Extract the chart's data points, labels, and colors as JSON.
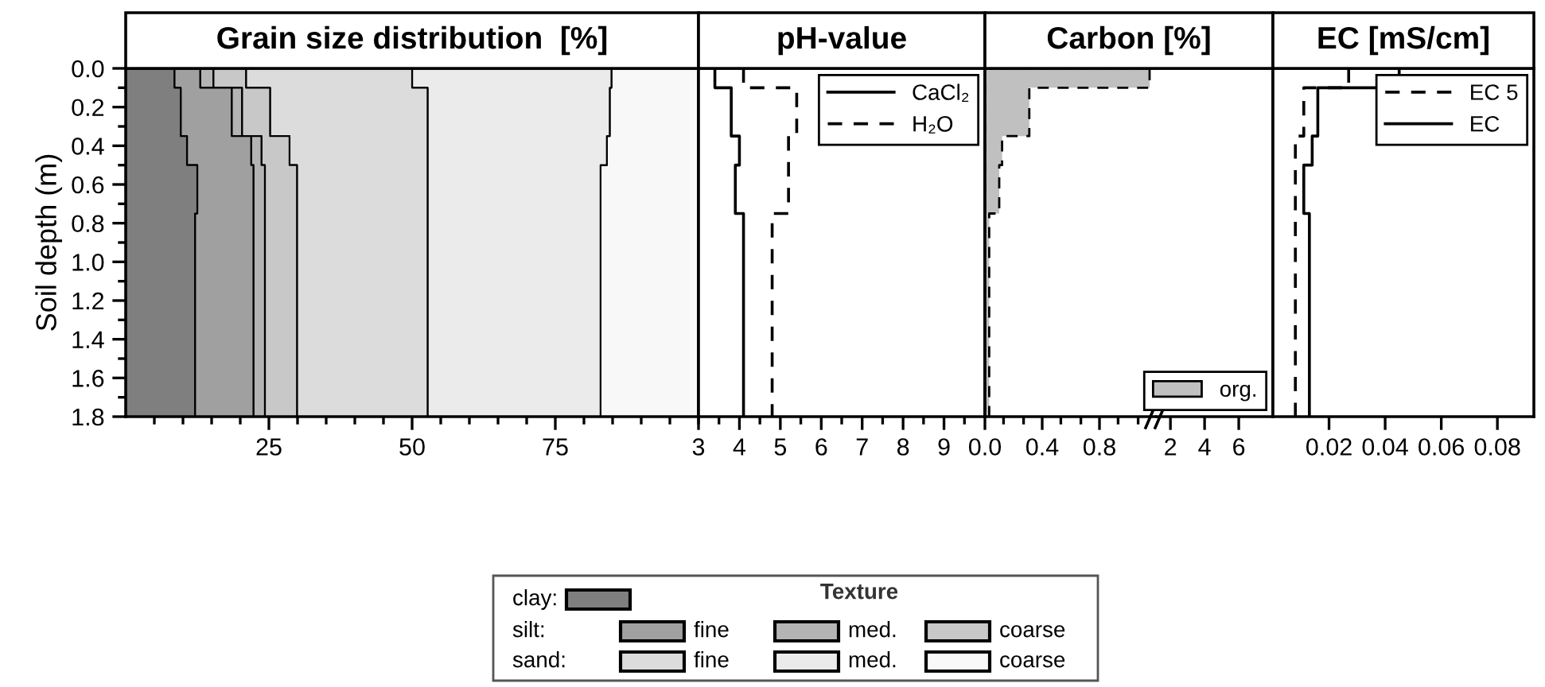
{
  "chart_data": [
    {
      "type": "area",
      "title": "Grain size distribution  [%]",
      "ylabel": "Soil depth (m)",
      "orientation": "horizontal",
      "stacked": true,
      "legend": "bottom",
      "legend_title": "Texture",
      "annotations": [
        "silt:",
        "sand:"
      ],
      "x": [
        0.0,
        0.1,
        0.35,
        0.5,
        0.75,
        1.8
      ],
      "ylim": [
        1.8,
        0.0
      ],
      "yticks": [
        {
          "value": 0,
          "label": "0.0"
        },
        {
          "value": 0.1,
          "label": null
        },
        0.2,
        {
          "value": 0.3,
          "label": null
        },
        0.4,
        {
          "value": 0.5,
          "label": null
        },
        0.6,
        {
          "value": 0.7,
          "label": null
        },
        0.8,
        {
          "value": 0.9,
          "label": null
        },
        {
          "value": 1,
          "label": "1.0"
        },
        {
          "value": 1.1,
          "label": null
        },
        1.2,
        {
          "value": 1.3,
          "label": null
        },
        1.4,
        {
          "value": 1.5,
          "label": null
        },
        1.6,
        {
          "value": 1.7,
          "label": null
        },
        1.8
      ],
      "xlim": [
        0,
        100
      ],
      "xticks": [
        {
          "value": 5,
          "label": null
        },
        {
          "value": 10,
          "label": null
        },
        {
          "value": 15,
          "label": null
        },
        {
          "value": 20,
          "label": null
        },
        25,
        {
          "value": 30,
          "label": null
        },
        {
          "value": 35,
          "label": null
        },
        {
          "value": 40,
          "label": null
        },
        {
          "value": 45,
          "label": null
        },
        50,
        {
          "value": 55,
          "label": null
        },
        {
          "value": 60,
          "label": null
        },
        {
          "value": 65,
          "label": null
        },
        {
          "value": 70,
          "label": null
        },
        75,
        {
          "value": 80,
          "label": null
        },
        {
          "value": 85,
          "label": null
        },
        {
          "value": 90,
          "label": null
        },
        {
          "value": 95,
          "label": null
        },
        {
          "value": 100,
          "label": null
        }
      ],
      "series": [
        {
          "name": "clay:",
          "color": "#7f7f7f",
          "values": [
            8.5,
            9.6,
            10.7,
            12.5,
            12.1,
            12.1
          ]
        },
        {
          "name": "fine",
          "color": "#a0a0a0",
          "values": [
            4.5,
            8.9,
            11.2,
            9.8,
            10.2,
            10.2
          ]
        },
        {
          "name": "med.",
          "color": "#b4b4b4",
          "values": [
            2.3,
            1.8,
            1.8,
            2.0,
            2.0,
            2.0
          ]
        },
        {
          "name": "coarse",
          "color": "#c8c8c8",
          "values": [
            5.7,
            4.9,
            4.9,
            5.6,
            5.6,
            5.6
          ]
        },
        {
          "name": "fine",
          "color": "#dcdcdc",
          "values": [
            29.0,
            27.5,
            24.1,
            22.8,
            22.8,
            22.8
          ]
        },
        {
          "name": "med.",
          "color": "#ebebeb",
          "values": [
            34.8,
            31.8,
            31.3,
            30.2,
            30.2,
            30.2
          ]
        },
        {
          "name": "coarse",
          "color": "#f8f8f8",
          "values": [
            15.2,
            15.5,
            16.0,
            17.1,
            17.1,
            17.1
          ]
        }
      ]
    },
    {
      "type": "step",
      "title": "pH-value",
      "orientation": "horizontal",
      "legend": "top right",
      "tick_labels": "x",
      "x": [
        0.0,
        0.1,
        0.35,
        0.5,
        0.75,
        1.8
      ],
      "ylim": [
        1.8,
        0.0
      ],
      "xlim": [
        3,
        10
      ],
      "xticks": [
        3,
        {
          "value": 3.5,
          "label": null
        },
        4,
        {
          "value": 4.5,
          "label": null
        },
        5,
        {
          "value": 5.5,
          "label": null
        },
        6,
        {
          "value": 6.5,
          "label": null
        },
        7,
        {
          "value": 7.5,
          "label": null
        },
        8,
        {
          "value": 8.5,
          "label": null
        },
        9,
        {
          "value": 9.5,
          "label": null
        }
      ],
      "series": [
        {
          "name": "CaCl₂",
          "color": "#000000",
          "line_style": "solid",
          "values": [
            3.4,
            3.8,
            4.0,
            3.9,
            4.1,
            4.1
          ]
        },
        {
          "name": "H₂O",
          "color": "#000000",
          "line_style": "dashed",
          "values": [
            4.1,
            5.4,
            5.2,
            5.2,
            4.8,
            4.8
          ]
        }
      ]
    },
    {
      "type": "area",
      "title": "Carbon [%]",
      "orientation": "horizontal",
      "legend": "bottom right",
      "tick_labels": "x",
      "x": [
        0.0,
        0.1,
        0.35,
        0.5,
        0.75,
        1.8
      ],
      "ylim": [
        1.8,
        0.0
      ],
      "xlim": [
        0,
        1.2
      ],
      "xticks": [
        {
          "value": 0,
          "label": "0.0"
        },
        {
          "value": 0.13,
          "label": null
        },
        {
          "value": 0.27,
          "label": null
        },
        0.4,
        {
          "value": 0.53,
          "label": null
        },
        {
          "value": 0.67,
          "label": null
        },
        0.8,
        {
          "value": 0.93,
          "label": null
        },
        {
          "value": 1.07,
          "label": null
        }
      ],
      "series": [
        {
          "name": "org.",
          "color": "#c0c0c0",
          "line_style": "dashed",
          "values": [
            1.15,
            0.31,
            0.12,
            0.1,
            0.03,
            0.03
          ]
        }
      ]
    },
    {
      "type": "area",
      "orientation": "horizontal",
      "tick_labels": "x",
      "ylim": [
        1.8,
        0.0
      ],
      "xlim": [
        1.2,
        8
      ],
      "xticks": [
        2,
        4,
        6
      ]
    },
    {
      "type": "step",
      "title": "EC [mS/cm]",
      "orientation": "horizontal",
      "legend": "top right",
      "tick_labels": "x",
      "x": [
        0.0,
        0.1,
        0.35,
        0.5,
        0.75,
        1.8
      ],
      "ylim": [
        1.8,
        0.0
      ],
      "xlim": [
        0,
        0.093
      ],
      "xticks": [
        0.02,
        0.04,
        0.06,
        0.08
      ],
      "series": [
        {
          "name": "EC 5",
          "color": "#000000",
          "line_style": "dashed",
          "values": [
            0.027,
            0.011,
            0.008,
            0.008,
            0.008,
            0.008
          ]
        },
        {
          "name": "EC",
          "color": "#000000",
          "line_style": "solid",
          "values": [
            0.045,
            0.016,
            0.014,
            0.011,
            0.013,
            0.013
          ]
        }
      ]
    }
  ]
}
